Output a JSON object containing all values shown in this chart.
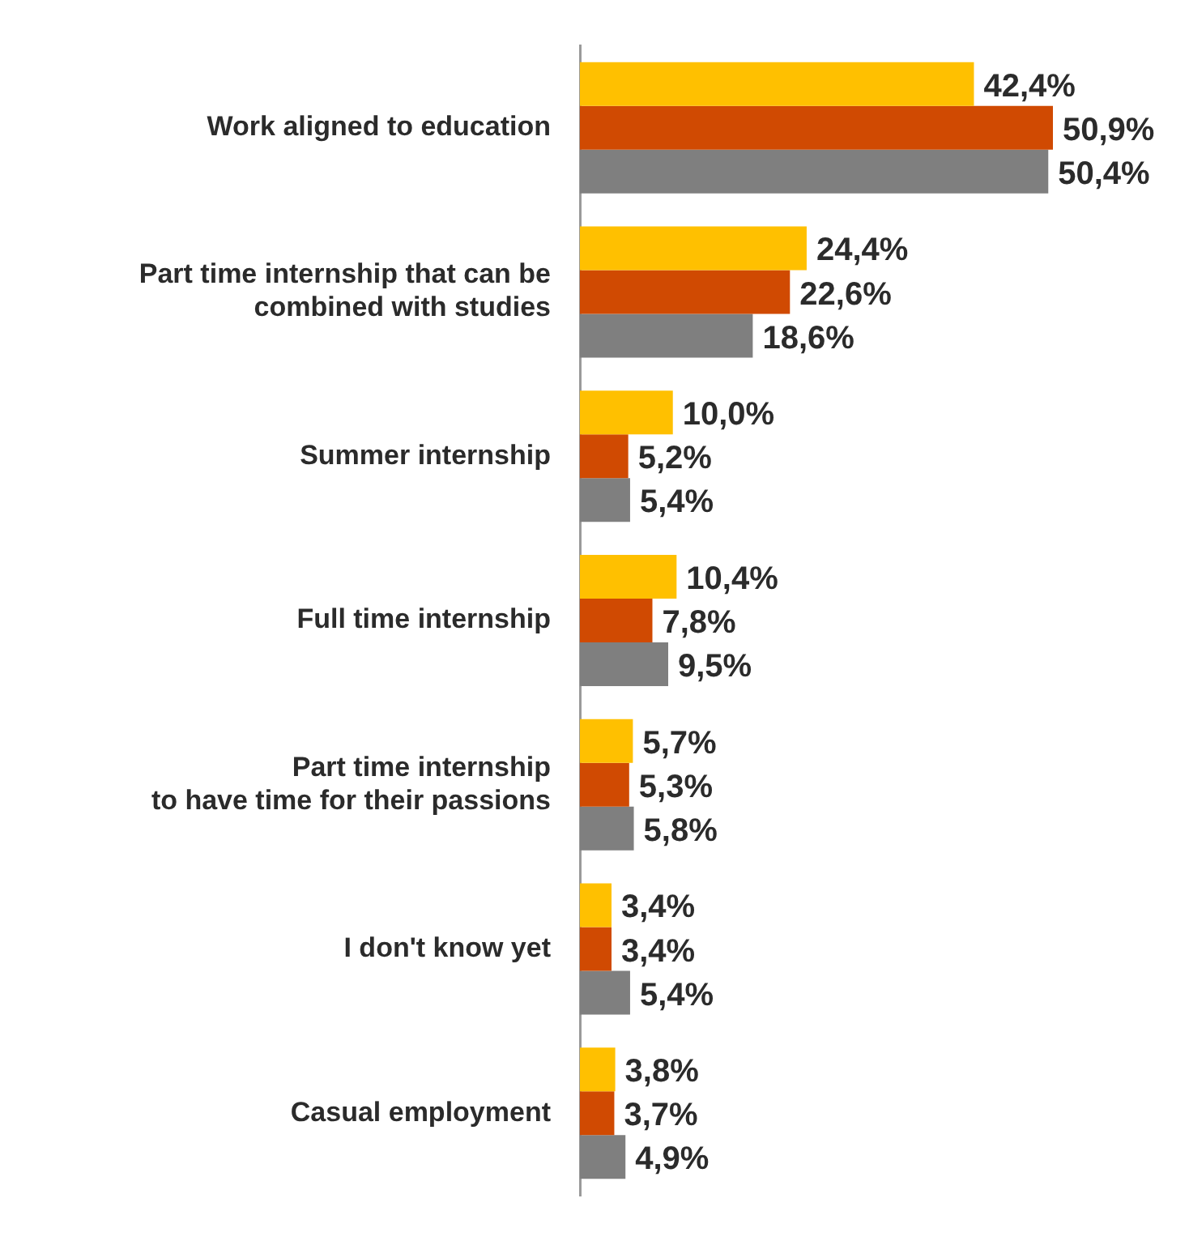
{
  "chart_data": {
    "type": "bar",
    "orientation": "horizontal",
    "categories": [
      "Work aligned to education",
      "Part time internship that can be\ncombined with studies",
      "Summer internship",
      "Full time internship",
      "Part time internship\nto have time for their passions",
      "I don't know yet",
      "Casual employment"
    ],
    "series": [
      {
        "color": "#ffc000",
        "values": [
          42.4,
          24.4,
          10.0,
          10.4,
          5.7,
          3.4,
          3.8
        ],
        "value_labels": [
          "42,4%",
          "24,4%",
          "10,0%",
          "10,4%",
          "5,7%",
          "3,4%",
          "3,8%"
        ]
      },
      {
        "color": "#d04a02",
        "values": [
          50.9,
          22.6,
          5.2,
          7.8,
          5.3,
          3.4,
          3.7
        ],
        "value_labels": [
          "50,9%",
          "22,6%",
          "5,2%",
          "7,8%",
          "5,3%",
          "3,4%",
          "3,7%"
        ]
      },
      {
        "color": "#7f7f7f",
        "values": [
          50.4,
          18.6,
          5.4,
          9.5,
          5.8,
          5.4,
          4.9
        ],
        "value_labels": [
          "50,4%",
          "18,6%",
          "5,4%",
          "9,5%",
          "5,8%",
          "5,4%",
          "4,9%"
        ]
      }
    ],
    "tick_labels": "y",
    "legend": false
  }
}
